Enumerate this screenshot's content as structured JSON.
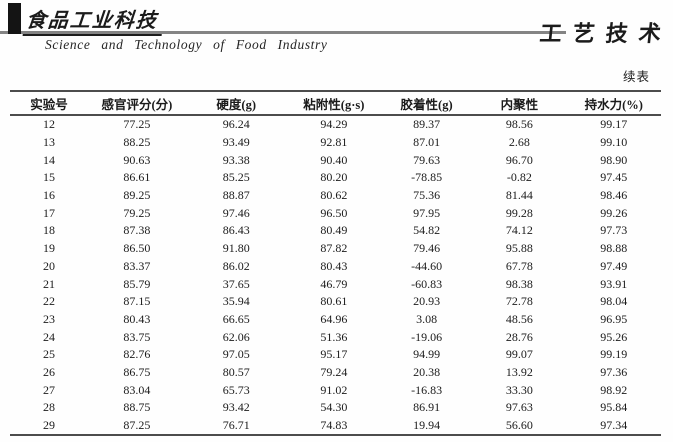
{
  "masthead": {
    "journal_name_cn": "食品工业科技",
    "journal_name_en": "Science and Technology of Food Industry",
    "section_title": "工艺技术",
    "continued_label": "续表"
  },
  "table": {
    "headers": [
      "实验号",
      "感官评分(分)",
      "硬度(g)",
      "粘附性(g·s)",
      "胶着性(g)",
      "内聚性",
      "持水力(%)"
    ],
    "rows": [
      [
        "12",
        "77.25",
        "96.24",
        "94.29",
        "89.37",
        "98.56",
        "99.17"
      ],
      [
        "13",
        "88.25",
        "93.49",
        "92.81",
        "87.01",
        "2.68",
        "99.10"
      ],
      [
        "14",
        "90.63",
        "93.38",
        "90.40",
        "79.63",
        "96.70",
        "98.90"
      ],
      [
        "15",
        "86.61",
        "85.25",
        "80.20",
        "-78.85",
        "-0.82",
        "97.45"
      ],
      [
        "16",
        "89.25",
        "88.87",
        "80.62",
        "75.36",
        "81.44",
        "98.46"
      ],
      [
        "17",
        "79.25",
        "97.46",
        "96.50",
        "97.95",
        "99.28",
        "99.26"
      ],
      [
        "18",
        "87.38",
        "86.43",
        "80.49",
        "54.82",
        "74.12",
        "97.73"
      ],
      [
        "19",
        "86.50",
        "91.80",
        "87.82",
        "79.46",
        "95.88",
        "98.88"
      ],
      [
        "20",
        "83.37",
        "86.02",
        "80.43",
        "-44.60",
        "67.78",
        "97.49"
      ],
      [
        "21",
        "85.79",
        "37.65",
        "46.79",
        "-60.83",
        "98.38",
        "93.91"
      ],
      [
        "22",
        "87.15",
        "35.94",
        "80.61",
        "20.93",
        "72.78",
        "98.04"
      ],
      [
        "23",
        "80.43",
        "66.65",
        "64.96",
        "3.08",
        "48.56",
        "96.95"
      ],
      [
        "24",
        "83.75",
        "62.06",
        "51.36",
        "-19.06",
        "28.76",
        "95.26"
      ],
      [
        "25",
        "82.76",
        "97.05",
        "95.17",
        "94.99",
        "99.07",
        "99.19"
      ],
      [
        "26",
        "86.75",
        "80.57",
        "79.24",
        "20.38",
        "13.92",
        "97.36"
      ],
      [
        "27",
        "83.04",
        "65.73",
        "91.02",
        "-16.83",
        "33.30",
        "98.92"
      ],
      [
        "28",
        "88.75",
        "93.42",
        "54.30",
        "86.91",
        "97.63",
        "95.84"
      ],
      [
        "29",
        "87.25",
        "76.71",
        "74.83",
        "19.94",
        "56.60",
        "97.34"
      ]
    ]
  }
}
